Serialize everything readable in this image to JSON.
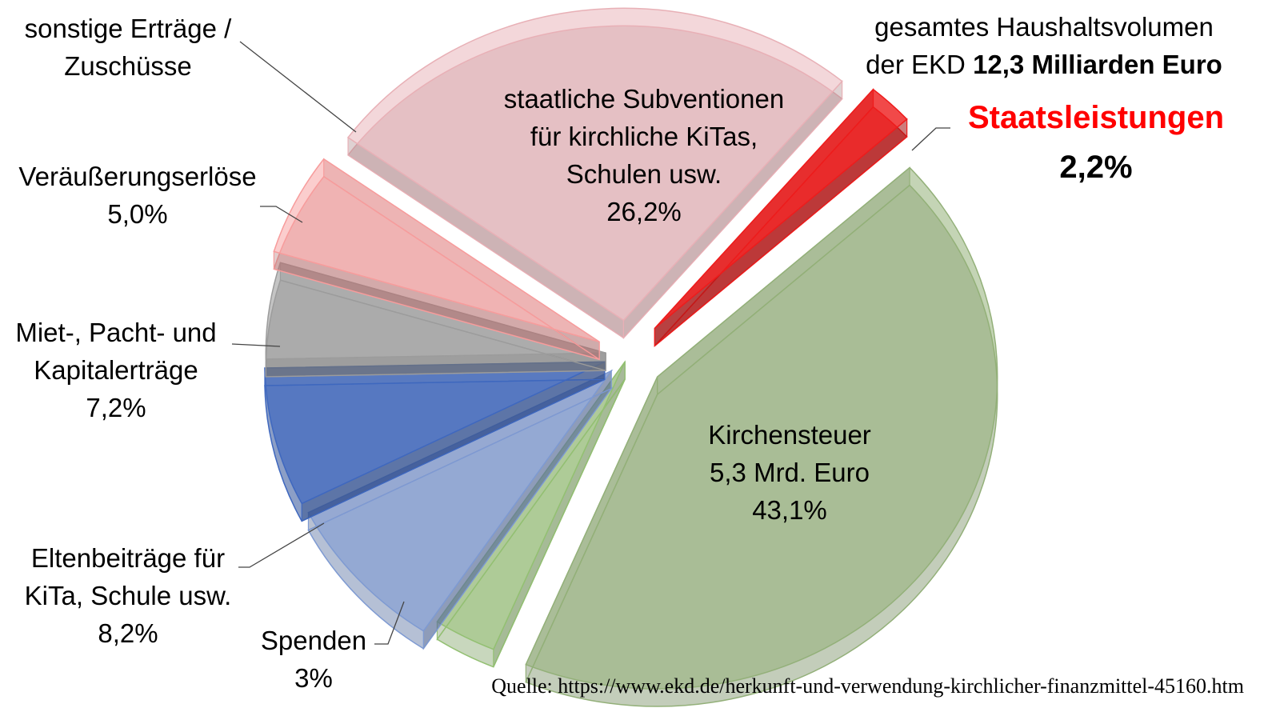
{
  "chart_data": {
    "type": "pie",
    "title_prefix": "gesamtes Haushaltsvolumen",
    "title_line2_prefix": "der EKD",
    "title_total": "12,3 Milliarden Euro",
    "highlight_label": "Staatsleistungen",
    "highlight_value": "2,2%",
    "source": "Quelle: https://www.ekd.de/herkunft-und-verwendung-kirchlicher-finanzmittel-45160.htm",
    "slices": [
      {
        "key": "staat",
        "label_lines": [
          "Staatsleistungen"
        ],
        "value": 2.2,
        "value_text": "2,2%",
        "color": "#ee1c1c",
        "alpha": 0.8
      },
      {
        "key": "kirchensteuer",
        "label_lines": [
          "Kirchensteuer",
          "5,3 Mrd. Euro"
        ],
        "value": 43.1,
        "value_text": "43,1%",
        "color": "#93b079",
        "alpha": 0.55
      },
      {
        "key": "spenden",
        "label_lines": [
          "Spenden"
        ],
        "value": 3,
        "value_text": "3%",
        "color": "#93c072",
        "alpha": 0.5
      },
      {
        "key": "elternbeitraege",
        "label_lines": [
          "Eltenbeiträge für",
          "KiTa, Schule usw."
        ],
        "value": 8.2,
        "value_text": "8,2%",
        "color": "#7e9ad2",
        "alpha": 0.6
      },
      {
        "key": "miete",
        "label_lines": [
          "Miet-, Pacht- und",
          "Kapitalerträge"
        ],
        "value": 7.2,
        "value_text": "7,2%",
        "color": "#3f68bf",
        "alpha": 0.7
      },
      {
        "key": "veraeusserung",
        "label_lines": [
          "Veräußerungserlöse"
        ],
        "value": 5.0,
        "value_text": "5,0%",
        "color": "#9c9c9c",
        "alpha": 0.6
      },
      {
        "key": "sonstige",
        "label_lines": [
          "sonstige Erträge /",
          "Zuschüsse"
        ],
        "value": 5.3,
        "value_text": "",
        "color": "#f79c9c",
        "alpha": 0.5
      },
      {
        "key": "subventionen",
        "label_lines": [
          "staatliche Subventionen",
          "für kirchliche KiTas,",
          "Schulen usw."
        ],
        "value": 26.2,
        "value_text": "26,2%",
        "color": "#e8b0b6",
        "alpha": 0.5
      }
    ]
  }
}
